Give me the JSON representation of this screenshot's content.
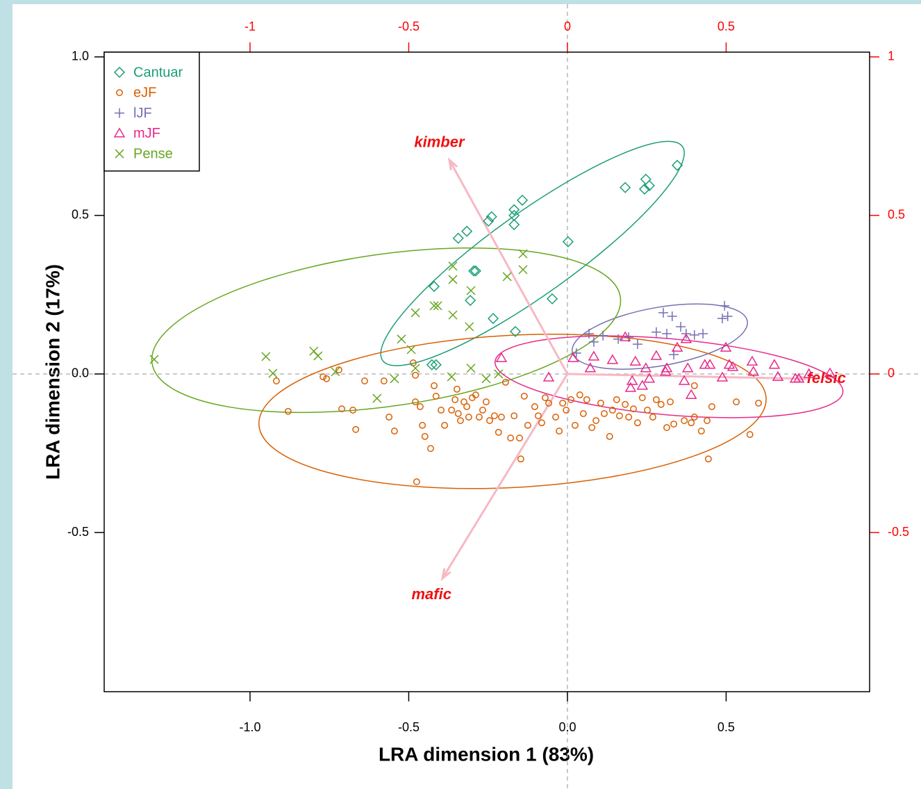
{
  "chart_data": {
    "type": "biplot",
    "xlabel": "LRA dimension 1 (83%)",
    "ylabel": "LRA dimension 2 (17%)",
    "xlim": [
      -1.4595,
      0.952
    ],
    "ylim": [
      -1.002,
      1.015
    ],
    "xticks": [
      {
        "value": -1,
        "label": "-1.0"
      },
      -0.5,
      {
        "value": 0,
        "label": "0.0"
      },
      0.5
    ],
    "yticks": [
      {
        "value": 1,
        "label": "1.0"
      },
      0.5,
      {
        "value": 0,
        "label": "0.0"
      },
      -0.5
    ],
    "x2lim": [
      -1.4595,
      0.952
    ],
    "y2lim": [
      -1.002,
      1.015
    ],
    "x2ticks": [
      -1,
      -0.5,
      0,
      0.5
    ],
    "y2ticks": [
      1,
      0.5,
      0,
      -0.5
    ],
    "secondary_axis_color": "#ff0000",
    "zero_lines": true,
    "legend": "top-left",
    "series": [
      {
        "name": "Cantuar",
        "color": "#1b9e77",
        "marker": "diamond",
        "ellipse": {
          "center": [
            -0.11,
            0.38
          ],
          "radii": [
            0.58,
            0.13
          ],
          "angle": 35.5
        },
        "x": [
          0.346,
          0.247,
          0.258,
          0.243,
          0.182,
          0.002,
          -0.142,
          -0.168,
          -0.168,
          -0.168,
          -0.239,
          -0.249,
          -0.317,
          -0.344,
          -0.295,
          -0.289,
          -0.42,
          -0.306,
          -0.234,
          -0.048,
          -0.164,
          -0.427,
          -0.414
        ],
        "values": [
          0.658,
          0.614,
          0.594,
          0.583,
          0.588,
          0.417,
          0.548,
          0.518,
          0.5,
          0.471,
          0.496,
          0.482,
          0.45,
          0.428,
          0.325,
          0.325,
          0.276,
          0.232,
          0.175,
          0.237,
          0.134,
          0.029,
          0.029
        ]
      },
      {
        "name": "eJF",
        "color": "#d95f02",
        "marker": "circle",
        "ellipse": {
          "center": [
            -0.173,
            -0.118
          ],
          "radii": [
            0.8,
            0.24
          ],
          "angle": 3
        },
        "x": [
          -0.917,
          -0.88,
          -0.77,
          -0.759,
          -0.72,
          -0.711,
          -0.676,
          -0.667,
          -0.639,
          -0.578,
          -0.562,
          -0.545,
          -0.486,
          -0.479,
          -0.479,
          -0.475,
          -0.464,
          -0.457,
          -0.449,
          -0.431,
          -0.42,
          -0.414,
          -0.398,
          -0.387,
          -0.365,
          -0.354,
          -0.348,
          -0.344,
          -0.337,
          -0.326,
          -0.317,
          -0.311,
          -0.3,
          -0.289,
          -0.278,
          -0.267,
          -0.256,
          -0.245,
          -0.23,
          -0.217,
          -0.208,
          -0.195,
          -0.179,
          -0.168,
          -0.151,
          -0.147,
          -0.136,
          -0.125,
          -0.103,
          -0.092,
          -0.081,
          -0.07,
          -0.059,
          -0.037,
          -0.026,
          -0.015,
          -0.004,
          0.011,
          0.024,
          0.039,
          0.05,
          0.061,
          0.077,
          0.09,
          0.105,
          0.116,
          0.133,
          0.142,
          0.155,
          0.164,
          0.182,
          0.193,
          0.208,
          0.221,
          0.236,
          0.252,
          0.269,
          0.28,
          0.295,
          0.313,
          0.324,
          0.335,
          0.368,
          0.39,
          0.4,
          0.422,
          0.44,
          0.455,
          0.444,
          0.575,
          0.602,
          0.532,
          0.4
        ],
        "values": [
          -0.022,
          -0.118,
          -0.009,
          -0.015,
          0.013,
          -0.11,
          -0.114,
          -0.175,
          -0.022,
          -0.022,
          -0.136,
          -0.18,
          0.035,
          -0.004,
          -0.088,
          -0.34,
          -0.103,
          -0.162,
          -0.197,
          -0.235,
          -0.037,
          -0.07,
          -0.114,
          -0.162,
          -0.114,
          -0.081,
          -0.048,
          -0.125,
          -0.147,
          -0.088,
          -0.103,
          -0.136,
          -0.075,
          -0.066,
          -0.136,
          -0.114,
          -0.088,
          -0.147,
          -0.132,
          -0.184,
          -0.136,
          -0.026,
          -0.202,
          -0.132,
          -0.202,
          -0.268,
          -0.07,
          -0.162,
          -0.103,
          -0.132,
          -0.154,
          -0.075,
          -0.092,
          -0.136,
          -0.18,
          -0.092,
          -0.114,
          -0.081,
          -0.162,
          -0.066,
          -0.125,
          -0.081,
          -0.169,
          -0.147,
          -0.092,
          -0.125,
          -0.197,
          -0.114,
          -0.081,
          -0.132,
          -0.096,
          -0.136,
          -0.11,
          -0.154,
          -0.075,
          -0.114,
          -0.136,
          -0.081,
          -0.096,
          -0.169,
          -0.088,
          -0.158,
          -0.147,
          -0.154,
          -0.136,
          -0.18,
          -0.147,
          -0.103,
          -0.268,
          -0.191,
          -0.092,
          -0.088,
          -0.037
        ]
      },
      {
        "name": "lJF",
        "color": "#7570b3",
        "marker": "plus",
        "ellipse": {
          "center": [
            0.291,
            0.118
          ],
          "radii": [
            0.28,
            0.092
          ],
          "angle": 10
        },
        "x": [
          0.495,
          0.505,
          0.488,
          0.302,
          0.33,
          0.357,
          0.374,
          0.427,
          0.313,
          0.28,
          0.335,
          0.221,
          0.193,
          0.112,
          0.16,
          0.068,
          0.083,
          0.028,
          0.4
        ],
        "values": [
          0.215,
          0.182,
          0.175,
          0.193,
          0.182,
          0.149,
          0.127,
          0.127,
          0.127,
          0.132,
          0.061,
          0.094,
          0.116,
          0.121,
          0.11,
          0.127,
          0.101,
          0.066,
          0.123
        ]
      },
      {
        "name": "mJF",
        "color": "#e7298a",
        "marker": "triangle",
        "ellipse": {
          "center": [
            0.32,
            -0.009
          ],
          "radii": [
            0.55,
            0.12
          ],
          "angle": -5
        },
        "x": [
          0.827,
          0.729,
          0.663,
          0.586,
          0.582,
          0.51,
          0.488,
          0.449,
          0.433,
          0.499,
          0.368,
          0.346,
          0.379,
          0.309,
          0.28,
          0.247,
          0.214,
          0.204,
          0.199,
          0.236,
          0.258,
          0.142,
          0.083,
          0.018,
          -0.059,
          -0.208,
          0.652,
          0.521,
          0.39,
          0.374,
          0.313,
          0.182,
          0.072,
          0.718,
          0.761
        ],
        "values": [
          0.002,
          -0.015,
          -0.009,
          0.007,
          0.039,
          0.029,
          -0.011,
          0.029,
          0.029,
          0.083,
          -0.022,
          0.083,
          0.018,
          0.007,
          0.057,
          0.018,
          0.039,
          -0.022,
          -0.044,
          -0.037,
          -0.015,
          0.044,
          0.055,
          0.05,
          -0.011,
          0.05,
          0.029,
          0.022,
          -0.066,
          0.11,
          0.018,
          0.116,
          0.018,
          -0.015,
          0
        ]
      },
      {
        "name": "Pense",
        "color": "#66a61e",
        "marker": "x",
        "ellipse": {
          "center": [
            -0.571,
            0.138
          ],
          "radii": [
            0.745,
            0.24
          ],
          "angle": 8
        },
        "x": [
          -1.302,
          -0.95,
          -0.928,
          -0.799,
          -0.786,
          -0.731,
          -0.6,
          -0.523,
          -0.492,
          -0.479,
          -0.42,
          -0.409,
          -0.361,
          -0.361,
          -0.361,
          -0.304,
          -0.309,
          -0.19,
          -0.14,
          -0.14,
          -0.545,
          -0.479,
          -0.365,
          -0.304,
          -0.256,
          -0.217
        ],
        "values": [
          0.046,
          0.055,
          0.002,
          0.072,
          0.057,
          0.007,
          -0.077,
          0.11,
          0.077,
          0.193,
          0.215,
          0.215,
          0.186,
          0.34,
          0.298,
          0.263,
          0.149,
          0.307,
          0.379,
          0.329,
          -0.015,
          0.018,
          -0.009,
          0.018,
          -0.015,
          0
        ]
      }
    ],
    "arrow_color": "#f7b8c4",
    "arrow_label_color": "#ee1111",
    "arrows": [
      {
        "label": "kimber",
        "x": -0.372,
        "y": 0.675
      },
      {
        "label": "mafic",
        "x": -0.394,
        "y": -0.645
      },
      {
        "label": "felsic",
        "x": 0.75,
        "y": -0.015
      }
    ]
  }
}
